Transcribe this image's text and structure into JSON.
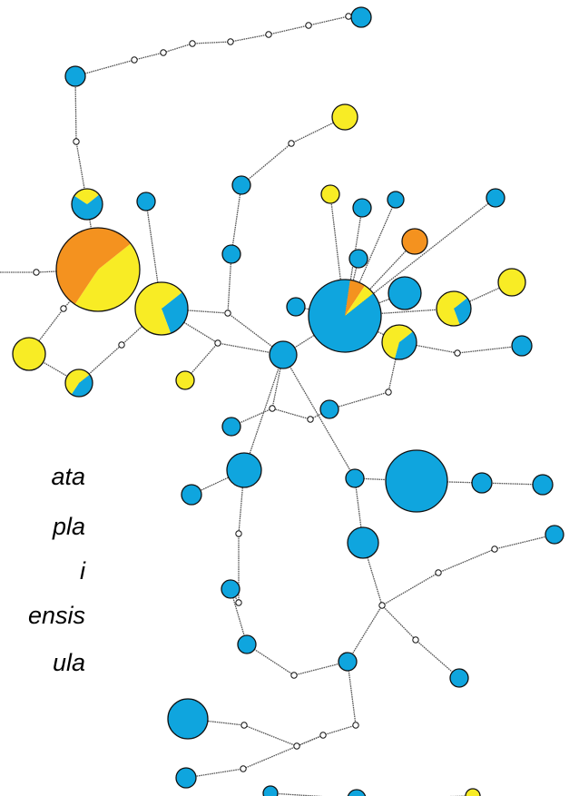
{
  "colors": {
    "blue": "#0fa5de",
    "yellow": "#f8ec25",
    "orange": "#f4921f",
    "edge": "#555555",
    "outline": "#111111"
  },
  "legend": {
    "labels": [
      "ata",
      "pla",
      "i",
      "ensis",
      "ula"
    ]
  },
  "network": {
    "nodes": [
      {
        "id": "n1",
        "shares": [
          {
            "c": "blue",
            "f": 1
          }
        ]
      },
      {
        "id": "n2",
        "shares": [
          {
            "c": "blue",
            "f": 1
          }
        ]
      },
      {
        "id": "n3",
        "shares": [
          {
            "c": "yellow",
            "f": 1
          }
        ]
      },
      {
        "id": "n4",
        "shares": [
          {
            "c": "blue",
            "f": 1
          }
        ]
      },
      {
        "id": "n5",
        "shares": [
          {
            "c": "blue",
            "f": 0.7
          },
          {
            "c": "yellow",
            "f": 0.3
          }
        ]
      },
      {
        "id": "n6",
        "shares": [
          {
            "c": "blue",
            "f": 1
          }
        ]
      },
      {
        "id": "n7",
        "shares": [
          {
            "c": "yellow",
            "f": 0.45
          },
          {
            "c": "orange",
            "f": 0.55
          }
        ]
      },
      {
        "id": "n8",
        "shares": [
          {
            "c": "blue",
            "f": 0.3
          },
          {
            "c": "yellow",
            "f": 0.7
          }
        ]
      },
      {
        "id": "n9",
        "shares": [
          {
            "c": "yellow",
            "f": 1
          }
        ]
      },
      {
        "id": "n10",
        "shares": [
          {
            "c": "blue",
            "f": 0.45
          },
          {
            "c": "yellow",
            "f": 0.55
          }
        ]
      },
      {
        "id": "n11",
        "shares": [
          {
            "c": "yellow",
            "f": 1
          }
        ]
      },
      {
        "id": "n12",
        "shares": [
          {
            "c": "blue",
            "f": 1
          }
        ]
      },
      {
        "id": "n13",
        "shares": [
          {
            "c": "blue",
            "f": 1
          }
        ]
      },
      {
        "id": "n14",
        "shares": [
          {
            "c": "yellow",
            "f": 1
          }
        ]
      },
      {
        "id": "n15",
        "shares": [
          {
            "c": "blue",
            "f": 1
          }
        ]
      },
      {
        "id": "n16",
        "shares": [
          {
            "c": "blue",
            "f": 1
          }
        ]
      },
      {
        "id": "n17",
        "shares": [
          {
            "c": "orange",
            "f": 1
          }
        ]
      },
      {
        "id": "n18",
        "shares": [
          {
            "c": "blue",
            "f": 1
          }
        ]
      },
      {
        "id": "n19",
        "shares": [
          {
            "c": "blue",
            "f": 1
          }
        ]
      },
      {
        "id": "n20",
        "shares": [
          {
            "c": "blue",
            "f": 0.88
          },
          {
            "c": "orange",
            "f": 0.07
          },
          {
            "c": "yellow",
            "f": 0.05
          }
        ]
      },
      {
        "id": "n21",
        "shares": [
          {
            "c": "blue",
            "f": 1
          }
        ]
      },
      {
        "id": "n22",
        "shares": [
          {
            "c": "blue",
            "f": 0.3
          },
          {
            "c": "yellow",
            "f": 0.7
          }
        ]
      },
      {
        "id": "n23",
        "shares": [
          {
            "c": "yellow",
            "f": 1
          }
        ]
      },
      {
        "id": "n24",
        "shares": [
          {
            "c": "blue",
            "f": 0.4
          },
          {
            "c": "yellow",
            "f": 0.6
          }
        ]
      },
      {
        "id": "n25",
        "shares": [
          {
            "c": "blue",
            "f": 1
          }
        ]
      },
      {
        "id": "n26",
        "shares": [
          {
            "c": "blue",
            "f": 1
          }
        ]
      },
      {
        "id": "n27",
        "shares": [
          {
            "c": "blue",
            "f": 1
          }
        ]
      },
      {
        "id": "n28",
        "shares": [
          {
            "c": "blue",
            "f": 1
          }
        ]
      },
      {
        "id": "n29",
        "shares": [
          {
            "c": "blue",
            "f": 1
          }
        ]
      },
      {
        "id": "n30",
        "shares": [
          {
            "c": "blue",
            "f": 1
          }
        ]
      },
      {
        "id": "n31",
        "shares": [
          {
            "c": "blue",
            "f": 1
          }
        ]
      },
      {
        "id": "n32",
        "shares": [
          {
            "c": "blue",
            "f": 1
          }
        ]
      },
      {
        "id": "n33",
        "shares": [
          {
            "c": "blue",
            "f": 1
          }
        ]
      },
      {
        "id": "n34",
        "shares": [
          {
            "c": "blue",
            "f": 1
          }
        ]
      },
      {
        "id": "n35",
        "shares": [
          {
            "c": "blue",
            "f": 1
          }
        ]
      },
      {
        "id": "n36",
        "shares": [
          {
            "c": "blue",
            "f": 1
          }
        ]
      },
      {
        "id": "n37",
        "shares": [
          {
            "c": "blue",
            "f": 1
          }
        ]
      },
      {
        "id": "n38",
        "shares": [
          {
            "c": "blue",
            "f": 1
          }
        ]
      },
      {
        "id": "n39",
        "shares": [
          {
            "c": "blue",
            "f": 1
          }
        ]
      },
      {
        "id": "n40",
        "shares": [
          {
            "c": "blue",
            "f": 1
          }
        ]
      },
      {
        "id": "n41",
        "shares": [
          {
            "c": "blue",
            "f": 1
          }
        ]
      },
      {
        "id": "n42",
        "shares": [
          {
            "c": "blue",
            "f": 1
          }
        ]
      },
      {
        "id": "n43",
        "shares": [
          {
            "c": "blue",
            "f": 1
          }
        ]
      },
      {
        "id": "n44",
        "shares": [
          {
            "c": "blue",
            "f": 1
          }
        ]
      },
      {
        "id": "n45",
        "shares": [
          {
            "c": "yellow",
            "f": 1
          }
        ]
      }
    ]
  }
}
